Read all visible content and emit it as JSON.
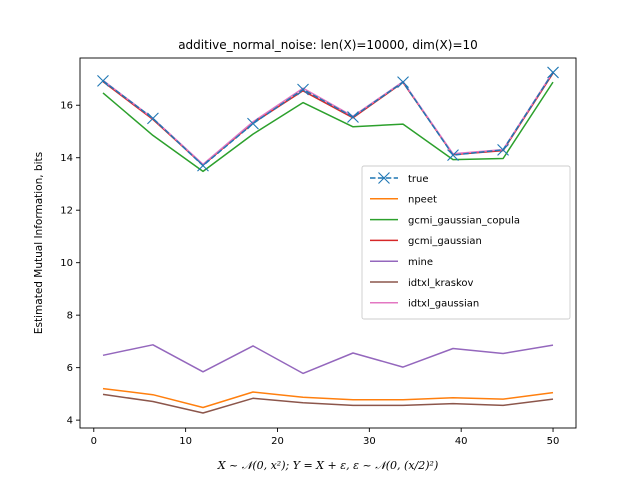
{
  "chart_data": {
    "type": "line",
    "title": "additive_normal_noise: len(X)=10000, dim(X)=10",
    "xlabel": "X ~ 𝒩(0, x²); Y = X + ε, ε ~ 𝒩(0, (x/2)²)",
    "ylabel": "Estimated Mutual Information, bits",
    "xlim": [
      -1.5,
      52.5
    ],
    "ylim": [
      3.7,
      17.8
    ],
    "xticks": [
      0,
      10,
      20,
      30,
      40,
      50
    ],
    "yticks": [
      4,
      6,
      8,
      10,
      12,
      14,
      16
    ],
    "grid": false,
    "legend": "center-right",
    "x": [
      1,
      6.44,
      11.89,
      17.33,
      22.78,
      28.22,
      33.67,
      39.11,
      44.56,
      50
    ],
    "series": [
      {
        "name": "true",
        "color": "#1f77b4",
        "style": "dashed-x",
        "values": [
          16.93,
          15.5,
          13.7,
          15.3,
          16.6,
          15.55,
          16.88,
          14.1,
          14.3,
          17.25
        ]
      },
      {
        "name": "npeet",
        "color": "#ff7f0e",
        "style": "solid",
        "values": [
          5.2,
          4.97,
          4.48,
          5.07,
          4.87,
          4.78,
          4.78,
          4.85,
          4.8,
          5.05
        ]
      },
      {
        "name": "gcmi_gaussian_copula",
        "color": "#2ca02c",
        "style": "solid",
        "values": [
          16.47,
          14.85,
          13.48,
          14.9,
          16.1,
          15.18,
          15.28,
          13.93,
          13.97,
          16.88
        ]
      },
      {
        "name": "gcmi_gaussian",
        "color": "#d62728",
        "style": "solid",
        "values": [
          16.9,
          15.46,
          13.72,
          15.32,
          16.55,
          15.52,
          16.87,
          14.12,
          14.27,
          17.22
        ]
      },
      {
        "name": "mine",
        "color": "#9467bd",
        "style": "solid",
        "values": [
          6.47,
          6.87,
          5.84,
          6.83,
          5.78,
          6.56,
          6.02,
          6.73,
          6.54,
          6.86
        ]
      },
      {
        "name": "idtxl_kraskov",
        "color": "#8c564b",
        "style": "solid",
        "values": [
          4.98,
          4.71,
          4.27,
          4.83,
          4.66,
          4.56,
          4.56,
          4.63,
          4.56,
          4.8
        ]
      },
      {
        "name": "idtxl_gaussian",
        "color": "#e377c2",
        "style": "solid",
        "values": [
          16.95,
          15.5,
          13.75,
          15.37,
          16.65,
          15.58,
          16.9,
          14.15,
          14.31,
          17.27
        ]
      }
    ]
  }
}
